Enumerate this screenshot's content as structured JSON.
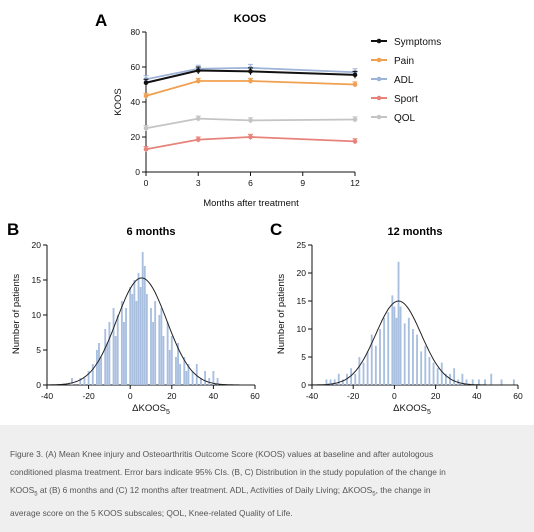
{
  "figure": {
    "panel_letters": [
      "A",
      "B",
      "C"
    ]
  },
  "chart_data": [
    {
      "type": "line",
      "title": "KOOS",
      "xlabel": "Months after treatment",
      "ylabel": "KOOS",
      "x": [
        0,
        3,
        6,
        12
      ],
      "xticks": [
        0,
        3,
        6,
        9,
        12
      ],
      "yticks": [
        0,
        20,
        40,
        60,
        80
      ],
      "xlim": [
        0,
        12
      ],
      "ylim": [
        0,
        80
      ],
      "legend": "right",
      "series": [
        {
          "name": "Symptoms",
          "color": "#111111",
          "values": [
            51,
            58,
            57.5,
            55.5
          ],
          "err": [
            2,
            2,
            2,
            2
          ]
        },
        {
          "name": "Pain",
          "color": "#f0a050",
          "values": [
            43.5,
            52,
            52,
            50
          ],
          "err": [
            1.5,
            1.5,
            1.5,
            1.5
          ]
        },
        {
          "name": "ADL",
          "color": "#9db3d8",
          "values": [
            53,
            59,
            59.5,
            57
          ],
          "err": [
            2,
            2,
            2,
            2
          ]
        },
        {
          "name": "Sport",
          "color": "#e6837a",
          "values": [
            13,
            18.5,
            20,
            17.5
          ],
          "err": [
            1.5,
            1.5,
            1.5,
            1.5
          ]
        },
        {
          "name": "QOL",
          "color": "#c4c4c4",
          "values": [
            25,
            30.5,
            29.5,
            30
          ],
          "err": [
            1.5,
            1.5,
            1.5,
            1.5
          ]
        }
      ]
    },
    {
      "type": "bar",
      "title": "6 months",
      "xlabel": "ΔKOOS",
      "xlabel_sub": "5",
      "ylabel": "Number of patients",
      "xticks": [
        -40,
        -20,
        0,
        20,
        40,
        60
      ],
      "yticks": [
        0,
        5,
        10,
        15,
        20
      ],
      "xlim": [
        -40,
        60
      ],
      "ylim": [
        0,
        20
      ],
      "bar_color": "#a9bfe0",
      "bins": [
        [
          -28,
          1
        ],
        [
          -24,
          1
        ],
        [
          -22,
          1
        ],
        [
          -20,
          2
        ],
        [
          -18,
          3
        ],
        [
          -16,
          5
        ],
        [
          -15,
          6
        ],
        [
          -14,
          4
        ],
        [
          -12,
          8
        ],
        [
          -11,
          6
        ],
        [
          -10,
          9
        ],
        [
          -8,
          11
        ],
        [
          -7,
          7
        ],
        [
          -6,
          10
        ],
        [
          -4,
          12
        ],
        [
          -3,
          9
        ],
        [
          -2,
          11
        ],
        [
          0,
          14
        ],
        [
          1,
          13
        ],
        [
          2,
          15
        ],
        [
          3,
          12
        ],
        [
          4,
          16
        ],
        [
          5,
          14
        ],
        [
          6,
          19
        ],
        [
          7,
          17
        ],
        [
          8,
          13
        ],
        [
          10,
          11
        ],
        [
          11,
          9
        ],
        [
          12,
          12
        ],
        [
          14,
          10
        ],
        [
          15,
          11
        ],
        [
          16,
          7
        ],
        [
          18,
          9
        ],
        [
          19,
          5
        ],
        [
          20,
          7
        ],
        [
          22,
          4
        ],
        [
          23,
          6
        ],
        [
          24,
          3
        ],
        [
          26,
          4
        ],
        [
          27,
          2
        ],
        [
          28,
          3
        ],
        [
          30,
          2
        ],
        [
          32,
          3
        ],
        [
          34,
          1
        ],
        [
          36,
          2
        ],
        [
          38,
          1
        ],
        [
          40,
          2
        ],
        [
          42,
          1
        ]
      ],
      "fit_curve": {
        "mean": 5.5,
        "sd": 12,
        "peak": 15.3
      }
    },
    {
      "type": "bar",
      "title": "12 months",
      "xlabel": "ΔKOOS",
      "xlabel_sub": "5",
      "ylabel": "Number of patients",
      "xticks": [
        -40,
        -20,
        0,
        20,
        40,
        60
      ],
      "yticks": [
        0,
        5,
        10,
        15,
        20,
        25
      ],
      "xlim": [
        -40,
        60
      ],
      "ylim": [
        0,
        25
      ],
      "bar_color": "#a9bfe0",
      "bins": [
        [
          -33,
          1
        ],
        [
          -31,
          1
        ],
        [
          -29,
          1
        ],
        [
          -27,
          2
        ],
        [
          -25,
          1
        ],
        [
          -23,
          2
        ],
        [
          -21,
          3
        ],
        [
          -19,
          2
        ],
        [
          -17,
          5
        ],
        [
          -15,
          4
        ],
        [
          -13,
          6
        ],
        [
          -11,
          9
        ],
        [
          -9,
          7
        ],
        [
          -7,
          10
        ],
        [
          -5,
          12
        ],
        [
          -3,
          13
        ],
        [
          -1,
          16
        ],
        [
          0,
          14
        ],
        [
          1,
          12
        ],
        [
          2,
          22
        ],
        [
          3,
          14
        ],
        [
          5,
          11
        ],
        [
          7,
          12
        ],
        [
          9,
          10
        ],
        [
          11,
          9
        ],
        [
          13,
          6
        ],
        [
          15,
          7
        ],
        [
          17,
          5
        ],
        [
          19,
          4
        ],
        [
          21,
          3
        ],
        [
          23,
          4
        ],
        [
          25,
          2
        ],
        [
          27,
          2
        ],
        [
          29,
          3
        ],
        [
          31,
          1
        ],
        [
          33,
          2
        ],
        [
          35,
          1
        ],
        [
          38,
          1
        ],
        [
          41,
          1
        ],
        [
          44,
          1
        ],
        [
          47,
          2
        ],
        [
          52,
          1
        ],
        [
          58,
          1
        ]
      ],
      "fit_curve": {
        "mean": 2,
        "sd": 11,
        "peak": 15
      }
    }
  ],
  "caption": {
    "l1": "Figure 3. (A) Mean Knee injury and Osteoarthritis Outcome Score (KOOS) values at baseline and after autologous",
    "l2": "conditioned plasma treatment. Error bars indicate 95% CIs. (B, C) Distribution in the study population of the change in",
    "l3a": "KOOS",
    "l3sub": "5",
    "l3b": " at (B) 6 months and (C) 12 months after treatment. ADL, Activities of Daily Living; ΔKOOS",
    "l3sub2": "5",
    "l3c": ", the change in",
    "l4": "average score on the 5 KOOS subscales; QOL, Knee-related Quality of Life."
  }
}
